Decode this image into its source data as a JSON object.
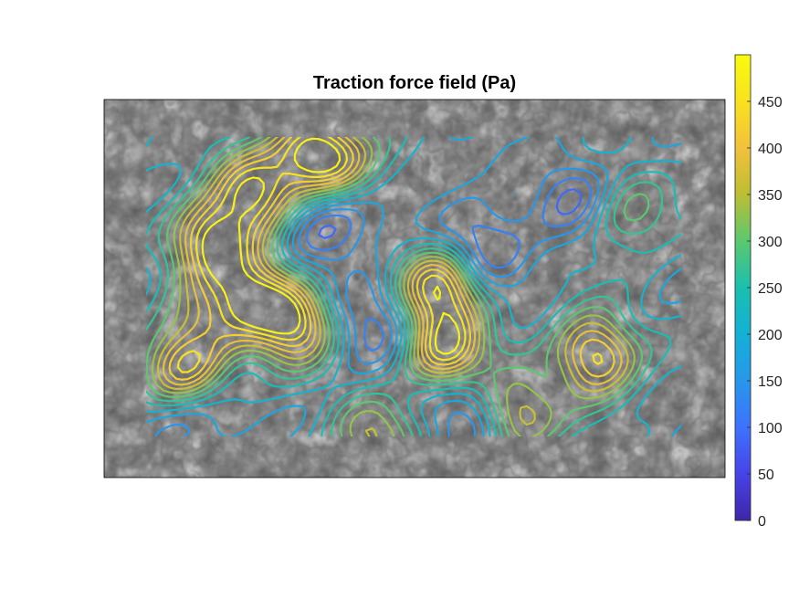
{
  "chart_data": {
    "type": "heatmap",
    "title": "Traction force field (Pa)",
    "background": "grayscale phase-contrast cell image",
    "colormap": "parula",
    "colorbar": {
      "min": 0,
      "max": 500,
      "ticks": [
        0,
        50,
        100,
        150,
        200,
        250,
        300,
        350,
        400,
        450
      ],
      "colors": [
        "#3e26a8",
        "#4743e8",
        "#3e72fd",
        "#2797eb",
        "#13b0d6",
        "#1ac0ae",
        "#5bc86f",
        "#bcbe33",
        "#f2c13b",
        "#f8e21e",
        "#f9fb0e"
      ]
    },
    "hotspots": [
      {
        "x": 0.12,
        "y": 0.34,
        "value": 480
      },
      {
        "x": 0.2,
        "y": 0.18,
        "value": 470
      },
      {
        "x": 0.31,
        "y": 0.05,
        "value": 490
      },
      {
        "x": 0.2,
        "y": 0.52,
        "value": 440
      },
      {
        "x": 0.28,
        "y": 0.62,
        "value": 460
      },
      {
        "x": 0.07,
        "y": 0.78,
        "value": 480
      },
      {
        "x": 0.55,
        "y": 0.5,
        "value": 490
      },
      {
        "x": 0.56,
        "y": 0.72,
        "value": 480
      },
      {
        "x": 0.84,
        "y": 0.73,
        "value": 490
      },
      {
        "x": 0.69,
        "y": 0.92,
        "value": 420
      },
      {
        "x": 0.42,
        "y": 1.0,
        "value": 360
      },
      {
        "x": 0.12,
        "y": 0.62,
        "value": 330
      },
      {
        "x": 0.37,
        "y": 0.1,
        "value": 320
      },
      {
        "x": 0.9,
        "y": 0.25,
        "value": 330
      }
    ],
    "lowspots": [
      {
        "x": 0.33,
        "y": 0.28,
        "value": 60
      },
      {
        "x": 0.62,
        "y": 0.35,
        "value": 60
      },
      {
        "x": 0.6,
        "y": 0.9,
        "value": 70
      },
      {
        "x": 0.42,
        "y": 0.6,
        "value": 80
      },
      {
        "x": 0.8,
        "y": 0.2,
        "value": 90
      },
      {
        "x": 0.08,
        "y": 0.93,
        "value": 80
      }
    ]
  }
}
